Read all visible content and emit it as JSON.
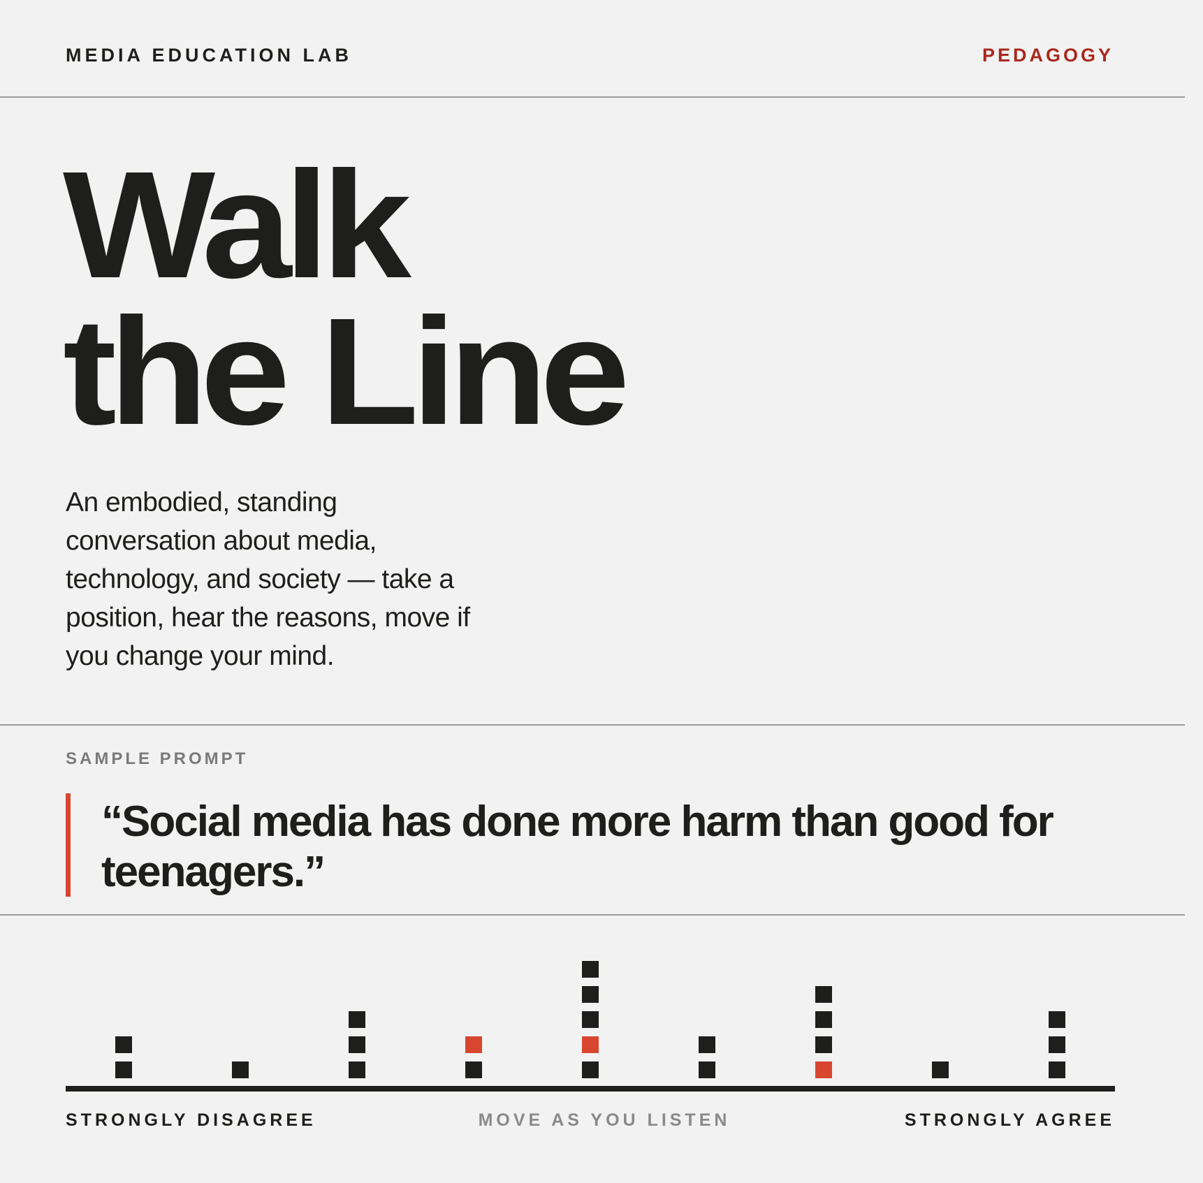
{
  "header": {
    "brand": "MEDIA EDUCATION LAB",
    "section": "PEDAGOGY"
  },
  "hero": {
    "title_line1": "Walk",
    "title_line2": "the Line",
    "intro": "An embodied, standing conversation about media, technology, and society — take a position, hear the reasons, move if you change your mind."
  },
  "prompt": {
    "label": "SAMPLE PROMPT",
    "quote": "“Social media has done more harm than good for teenagers.”"
  },
  "scale": {
    "left_label": "STRONGLY DISAGREE",
    "middle_label": "MOVE AS YOU LISTEN",
    "right_label": "STRONGLY AGREE",
    "columns": [
      {
        "count": 2,
        "highlighted": []
      },
      {
        "count": 1,
        "highlighted": []
      },
      {
        "count": 3,
        "highlighted": []
      },
      {
        "count": 2,
        "highlighted": [
          2
        ]
      },
      {
        "count": 5,
        "highlighted": [
          2
        ]
      },
      {
        "count": 2,
        "highlighted": []
      },
      {
        "count": 4,
        "highlighted": [
          1
        ]
      },
      {
        "count": 1,
        "highlighted": []
      },
      {
        "count": 3,
        "highlighted": []
      }
    ]
  },
  "colors": {
    "ink": "#1e1e1c",
    "accent": "#d84630",
    "section_tag": "#a8291c",
    "muted": "#7a7a7a"
  }
}
